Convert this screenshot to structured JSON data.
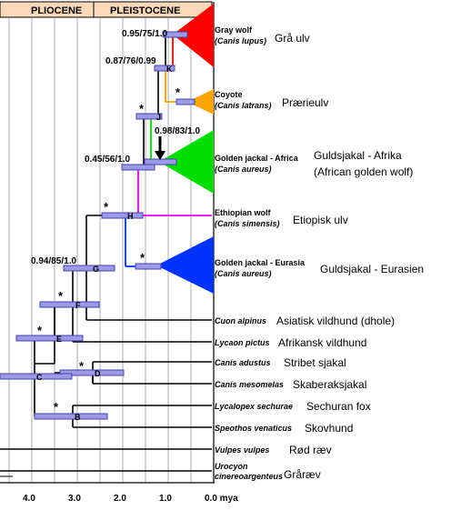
{
  "epochs": {
    "pliocene": "PLIOCENE",
    "pleistocene": "PLEISTOCENE"
  },
  "axis": {
    "ticks": [
      "4.0",
      "3.0",
      "2.0",
      "1.0",
      "0.0 mya"
    ]
  },
  "nodes": {
    "B": "B",
    "C": "C",
    "D": "D",
    "E": "E",
    "F": "F",
    "G": "G",
    "H": "H",
    "J": "J",
    "K": "K"
  },
  "supports": {
    "wolf": "0.95/75/1.0",
    "k": "0.87/76/0.99",
    "jackal_africa": "0.98/83/1.0",
    "africa_clade": "0.45/56/1.0",
    "g": "0.94/85/1.0",
    "star": "*"
  },
  "taxa": {
    "gray_wolf": {
      "en": "Gray wolf",
      "sci": "(Canis lupus)",
      "da": "Grå ulv"
    },
    "coyote": {
      "en": "Coyote",
      "sci": "(Canis latrans)",
      "da": "Prærieulv"
    },
    "golden_jackal_africa": {
      "en": "Golden jackal - Africa",
      "sci": "(Canis aureus)",
      "da": "Guldsjakal - Afrika",
      "da2": "(African golden wolf)"
    },
    "ethiopian_wolf": {
      "en": "Ethiopian wolf",
      "sci": "(Canis simensis)",
      "da": "Etiopisk ulv"
    },
    "golden_jackal_eurasia": {
      "en": "Golden jackal - Eurasia",
      "sci": "(Canis aureus)",
      "da": "Guldsjakal - Eurasien"
    },
    "cuon": {
      "sci": "Cuon alpinus",
      "da": "Asiatisk vildhund (dhole)"
    },
    "lycaon": {
      "sci": "Lycaon pictus",
      "da": "Afrikansk vildhund"
    },
    "adustus": {
      "sci": "Canis adustus",
      "da": "Stribet sjakal"
    },
    "mesomelas": {
      "sci": "Canis mesomelas",
      "da": "Skaberaksjakal"
    },
    "lycalopex": {
      "sci": "Lycalopex sechurae",
      "da": "Sechuran fox"
    },
    "speothos": {
      "sci": "Speothos venaticus",
      "da": "Skovhund"
    },
    "vulpes": {
      "sci": "Vulpes vulpes",
      "da": "Rød ræv"
    },
    "urocyon": {
      "sci1": "Urocyon",
      "sci2": "cinereoargenteus",
      "da": "Gråræv"
    }
  },
  "colors": {
    "wolf": "#ff0000",
    "coyote": "#ffa500",
    "jackal_africa": "#00dd00",
    "ethiopian": "#ee00ee",
    "jackal_eurasia": "#0033ff",
    "bar_fill": "#9a9ae8",
    "bar_stroke": "#4444aa",
    "epoch_fill": "#fbd9b8"
  }
}
